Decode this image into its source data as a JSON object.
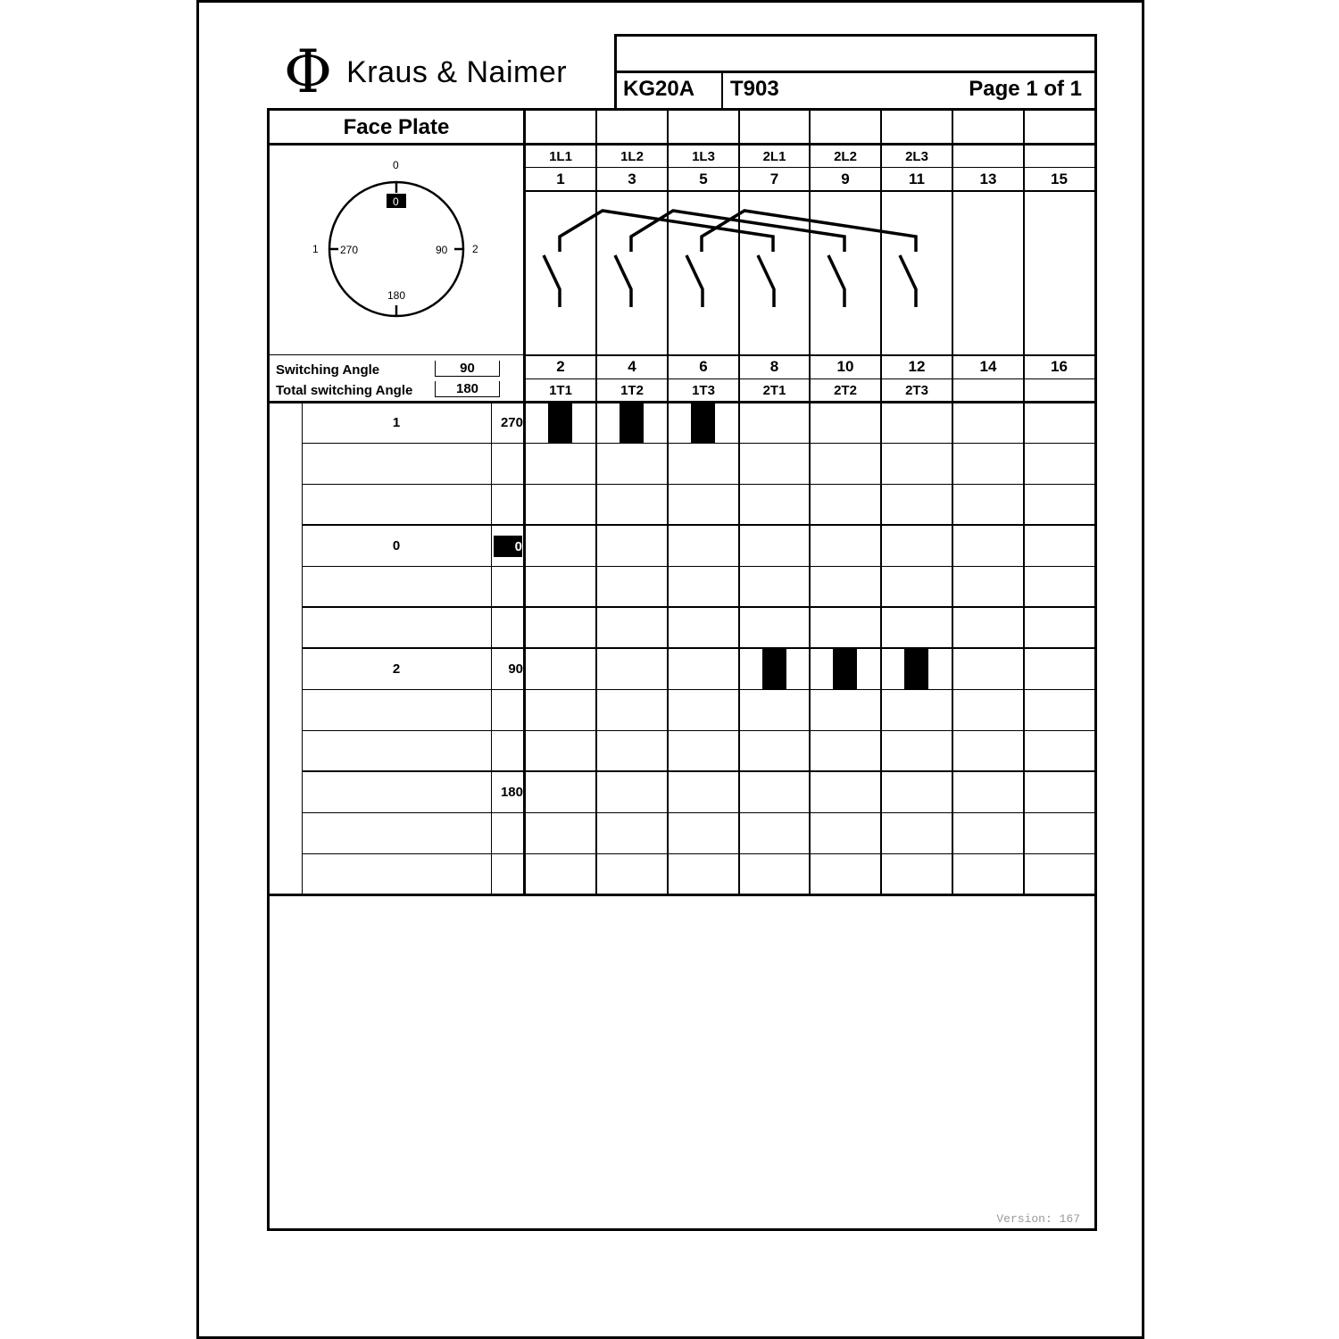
{
  "header": {
    "brand": "Kraus & Naimer",
    "model": "KG20A",
    "code": "T903",
    "page": "Page 1 of 1"
  },
  "face_plate": {
    "title": "Face Plate",
    "outer_labels": {
      "top": "0",
      "left": "1",
      "right": "2"
    },
    "inner_labels": {
      "top": "0",
      "left": "270",
      "right": "90",
      "bottom": "180"
    },
    "switching_angle_label": "Switching Angle",
    "switching_angle": "90",
    "total_angle_label": "Total switching Angle",
    "total_angle": "180"
  },
  "terminals": {
    "top_names": [
      "1L1",
      "1L2",
      "1L3",
      "2L1",
      "2L2",
      "2L3",
      "",
      ""
    ],
    "top_numbers": [
      "1",
      "3",
      "5",
      "7",
      "9",
      "11",
      "13",
      "15"
    ],
    "bottom_numbers": [
      "2",
      "4",
      "6",
      "8",
      "10",
      "12",
      "14",
      "16"
    ],
    "bottom_names": [
      "1T1",
      "1T2",
      "1T3",
      "2T1",
      "2T2",
      "2T3",
      "",
      ""
    ]
  },
  "positions": [
    {
      "label": "1",
      "angle": "270",
      "highlight": false,
      "closed": [
        0,
        1,
        2
      ]
    },
    {
      "label": "",
      "angle": "",
      "highlight": false,
      "closed": []
    },
    {
      "label": "",
      "angle": "",
      "highlight": false,
      "closed": []
    },
    {
      "label": "0",
      "angle": "0",
      "highlight": true,
      "closed": []
    },
    {
      "label": "",
      "angle": "",
      "highlight": false,
      "closed": []
    },
    {
      "label": "",
      "angle": "",
      "highlight": false,
      "closed": []
    },
    {
      "label": "2",
      "angle": "90",
      "highlight": false,
      "closed": [
        3,
        4,
        5
      ]
    },
    {
      "label": "",
      "angle": "",
      "highlight": false,
      "closed": []
    },
    {
      "label": "",
      "angle": "",
      "highlight": false,
      "closed": []
    },
    {
      "label": "",
      "angle": "180",
      "highlight": false,
      "closed": []
    },
    {
      "label": "",
      "angle": "",
      "highlight": false,
      "closed": []
    },
    {
      "label": "",
      "angle": "",
      "highlight": false,
      "closed": []
    }
  ],
  "footer": {
    "version": "Version: 167"
  }
}
